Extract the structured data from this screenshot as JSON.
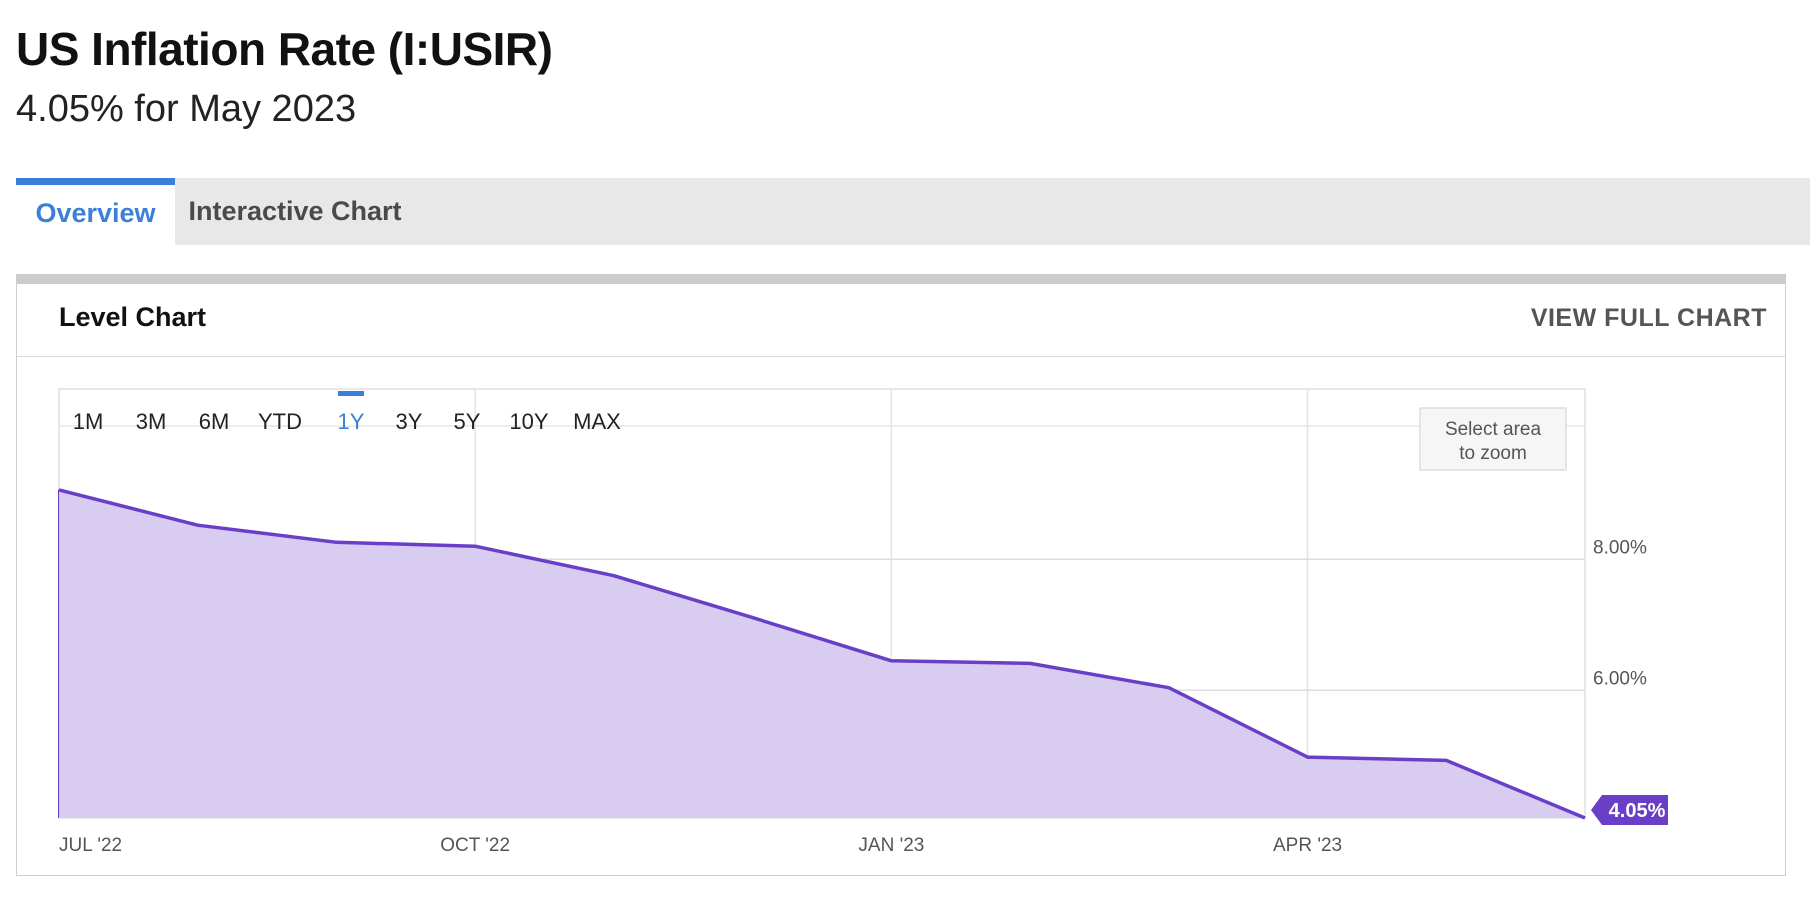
{
  "header": {
    "title": "US Inflation Rate (I:USIR)",
    "subtitle": "4.05% for May 2023"
  },
  "tabs": [
    {
      "label": "Overview",
      "active": true
    },
    {
      "label": "Interactive Chart",
      "active": false
    }
  ],
  "panel": {
    "title": "Level Chart",
    "view_full_label": "VIEW FULL CHART"
  },
  "range_buttons": [
    {
      "label": "1M",
      "active": false
    },
    {
      "label": "3M",
      "active": false
    },
    {
      "label": "6M",
      "active": false
    },
    {
      "label": "YTD",
      "active": false
    },
    {
      "label": "1Y",
      "active": true
    },
    {
      "label": "3Y",
      "active": false
    },
    {
      "label": "5Y",
      "active": false
    },
    {
      "label": "10Y",
      "active": false
    },
    {
      "label": "MAX",
      "active": false
    }
  ],
  "zoom_hint": [
    "Select area",
    "to zoom"
  ],
  "colors": {
    "line": "#6a3fc8",
    "fill": "#d6c9f0",
    "accent": "#3c7fd8",
    "badge": "#6a3fc8"
  },
  "chart_data": {
    "type": "area",
    "x": [
      "2022-06",
      "2022-07",
      "2022-08",
      "2022-09",
      "2022-10",
      "2022-11",
      "2022-12",
      "2023-01",
      "2023-02",
      "2023-03",
      "2023-04",
      "2023-05"
    ],
    "series": [
      {
        "values": [
          9.06,
          8.52,
          8.26,
          8.2,
          7.75,
          7.11,
          6.45,
          6.41,
          6.04,
          4.98,
          4.93,
          4.05
        ]
      }
    ],
    "x_tick_labels": [
      {
        "label": "JUL '22",
        "x": "2022-06"
      },
      {
        "label": "OCT '22",
        "x": "2022-09"
      },
      {
        "label": "JAN '23",
        "x": "2022-12"
      },
      {
        "label": "APR '23",
        "x": "2023-03"
      }
    ],
    "y_ticks": [
      {
        "value": 6,
        "label": "6.00%"
      },
      {
        "value": 8,
        "label": "8.00%"
      }
    ],
    "ylim": [
      4.05,
      10.6
    ],
    "axis_position": "right",
    "last_value_label": "4.05%",
    "grid": true
  }
}
